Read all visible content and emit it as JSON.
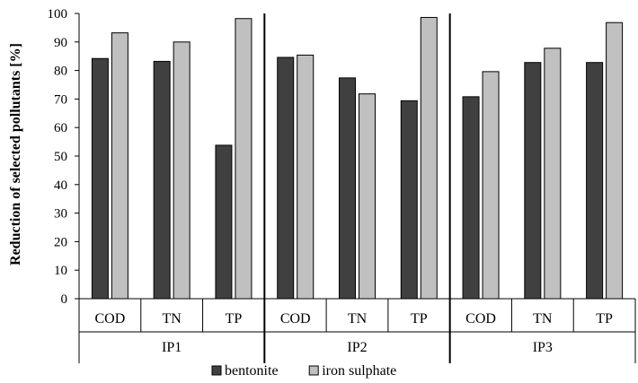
{
  "chart_data": {
    "type": "bar",
    "ylabel": "Reduction of selected pollutants [%]",
    "ylim": [
      0,
      100
    ],
    "ytick_step": 10,
    "grid": false,
    "legend_position": "bottom",
    "groups": [
      {
        "label": "IP1",
        "categories": [
          "COD",
          "TN",
          "TP"
        ]
      },
      {
        "label": "IP2",
        "categories": [
          "COD",
          "TN",
          "TP"
        ]
      },
      {
        "label": "IP3",
        "categories": [
          "COD",
          "TN",
          "TP"
        ]
      }
    ],
    "series": [
      {
        "name": "bentonite",
        "color": "#404040",
        "values": [
          84.2,
          83.2,
          53.8,
          84.6,
          77.4,
          69.4,
          70.8,
          82.8,
          82.8
        ]
      },
      {
        "name": "iron sulphate",
        "color": "#c0c0c0",
        "values": [
          93.2,
          90.0,
          98.2,
          85.4,
          71.8,
          98.6,
          79.6,
          87.8,
          96.8
        ]
      }
    ]
  }
}
